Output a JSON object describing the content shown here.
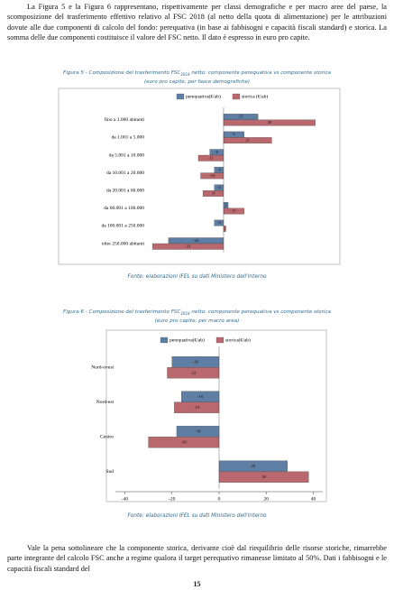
{
  "paragraphs": [
    "La Figura 5 e la Figura 6 rappresentano, rispettivamente per classi demografiche e per macro aree del paese, la scomposizione del trasferimento effettivo relativo al FSC 2018 (al netto della quota di alimentazione) per le attribuzioni dovute alle due componenti di calcolo del fondo: perequativa (in base ai fabbisogni e capacità fiscali standard) e storica. La somma delle due componenti costituisce il valore del FSC netto. Il dato è espresso in euro pro capite.",
    "Vale la pena sottolineare che la componente storica, derivante cioè dal riequilibrio delle risorse storiche, rimarrebbe parte integrante del calcolo FSC anche a regime qualora il target perequativo rimanesse limitato al 50%. Dati i fabbisogni e le capacità fiscali standard del"
  ],
  "figures": [
    {
      "caption": "Figura 5 - Composizione del trasferimento FSC",
      "caption_sub": "2018",
      "caption_rest": "netto: componente perequativa vs componente storica",
      "caption_line2": "(euro pro capite, per fasce demografiche)",
      "source": "Fonte: elaborazioni IFEL su dati Ministero dell'Interno"
    },
    {
      "caption": "Figura 6 - Composizione del trasferimento FSC",
      "caption_sub": "2018",
      "caption_rest": "netto: componente perequativa vs componente storica",
      "caption_line2": "(euro pro capite, per macro area)",
      "source": "Fonte: elaborazioni IFEL su dati Ministero dell'Interno"
    }
  ],
  "chart_data": [
    {
      "type": "hbar",
      "categories": [
        "fino a 1.000 abitanti",
        "da 1.001 a 5.000",
        "da 5.001 a 10.000",
        "da 10.001 a 20.000",
        "da 20.001 a 60.000",
        "da 60.001 a 100.000",
        "da 100.001 a 250.000",
        "oltre 250.000 abitanti"
      ],
      "series": [
        {
          "name": "perequativa(€/ab)",
          "color": "#5f7ea3",
          "values": [
            15,
            9,
            -6,
            -4,
            -4,
            2,
            -4,
            -24
          ]
        },
        {
          "name": "storica (€/ab)",
          "color": "#b9686d",
          "values": [
            40,
            21,
            -11,
            -10,
            -9,
            9,
            1,
            -31
          ]
        }
      ],
      "xlim": [
        -33,
        46
      ]
    },
    {
      "type": "hbar",
      "categories": [
        "Nord-ovest",
        "Nord-est",
        "Centro",
        "Sud"
      ],
      "series": [
        {
          "name": "perequativa(€/ab)",
          "color": "#5f7ea3",
          "values": [
            -20,
            -16,
            -18,
            29
          ]
        },
        {
          "name": "storica(€/ab)",
          "color": "#b9686d",
          "values": [
            -22,
            -19,
            -30,
            38
          ]
        }
      ],
      "xlim": [
        -44,
        44
      ],
      "xticks": [
        -40,
        -20,
        0,
        20,
        40
      ]
    }
  ],
  "page_number": "15"
}
